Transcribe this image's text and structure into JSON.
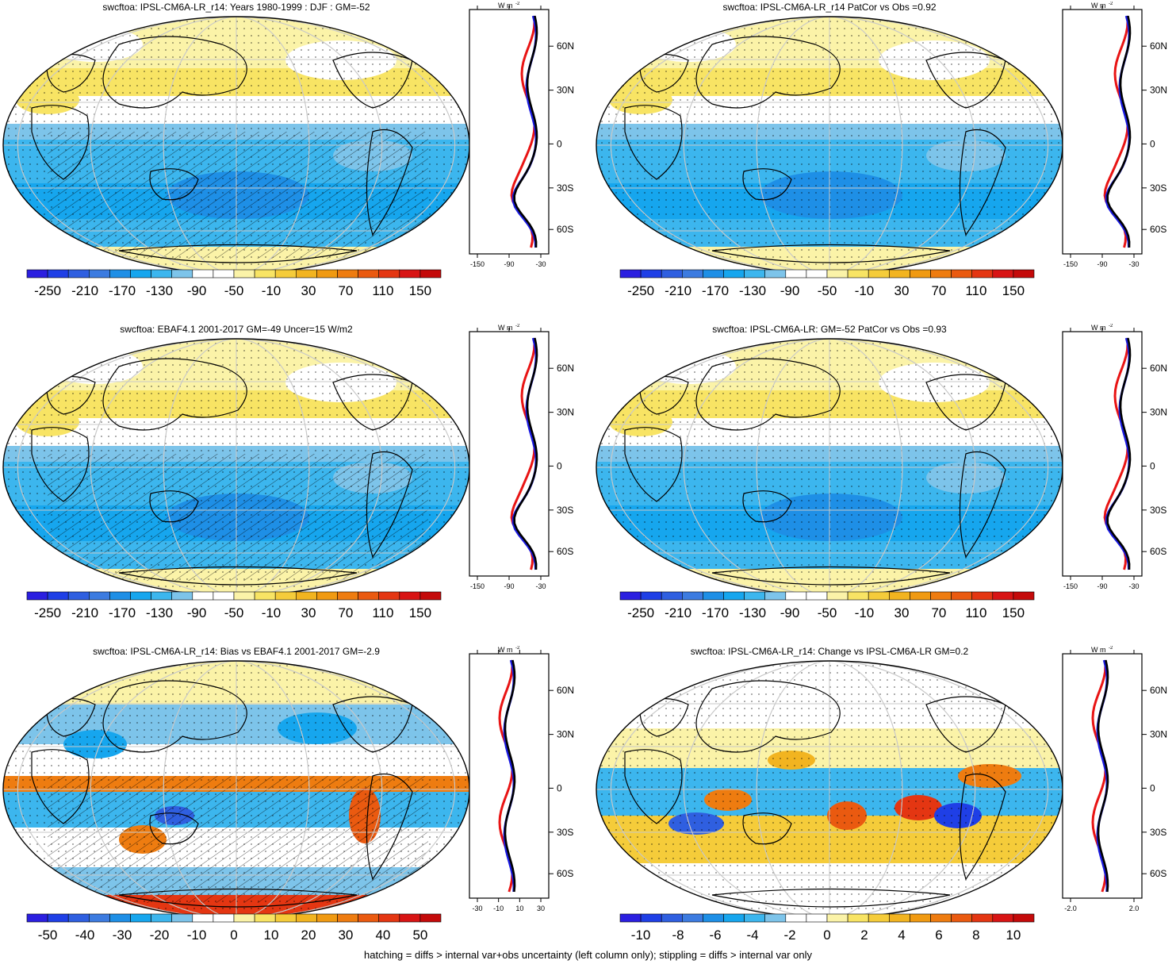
{
  "footer": "hatching = diffs > internal var+obs uncertainty (left column only); stippling = diffs > internal var only",
  "profile_unit": "W m",
  "profile_unit_sup": "-2",
  "lat_labels": [
    "60N",
    "30N",
    "0",
    "30S",
    "60S"
  ],
  "palette_full": [
    "#2b1fe0",
    "#1f3fe6",
    "#2f5fe0",
    "#3c7be0",
    "#1e8fe6",
    "#16a6ee",
    "#3cb6ee",
    "#7dc4ea",
    "#ffffff",
    "#ffffff",
    "#fbf3a8",
    "#f8e464",
    "#f5cc3a",
    "#f2b420",
    "#f09a12",
    "#ee7c10",
    "#ea5a10",
    "#e43612",
    "#d81414",
    "#c40a0a"
  ],
  "panels": [
    {
      "id": "p1",
      "title": "swcftoa: IPSL-CM6A-LR_r14: Years 1980-1999 : DJF : GM=-52",
      "colorbar_labels": [
        "-250",
        "-210",
        "-170",
        "-130",
        "-90",
        "-50",
        "-10",
        "30",
        "70",
        "110",
        "150"
      ],
      "profile_ticks": [
        "-150",
        "-90",
        "-30"
      ],
      "style": "abs",
      "hatch": true
    },
    {
      "id": "p2",
      "title": "swcftoa: IPSL-CM6A-LR_r14 PatCor vs Obs =0.92",
      "colorbar_labels": [
        "-250",
        "-210",
        "-170",
        "-130",
        "-90",
        "-50",
        "-10",
        "30",
        "70",
        "110",
        "150"
      ],
      "profile_ticks": [
        "-150",
        "-90",
        "-30"
      ],
      "style": "abs",
      "hatch": false
    },
    {
      "id": "p3",
      "title": "swcftoa: EBAF4.1 2001-2017 GM=-49 Uncer=15 W/m2",
      "colorbar_labels": [
        "-250",
        "-210",
        "-170",
        "-130",
        "-90",
        "-50",
        "-10",
        "30",
        "70",
        "110",
        "150"
      ],
      "profile_ticks": [
        "-150",
        "-90",
        "-30"
      ],
      "style": "abs",
      "hatch": true
    },
    {
      "id": "p4",
      "title": "swcftoa: IPSL-CM6A-LR: GM=-52 PatCor vs Obs =0.93",
      "colorbar_labels": [
        "-250",
        "-210",
        "-170",
        "-130",
        "-90",
        "-50",
        "-10",
        "30",
        "70",
        "110",
        "150"
      ],
      "profile_ticks": [
        "-150",
        "-90",
        "-30"
      ],
      "style": "abs",
      "hatch": false
    },
    {
      "id": "p5",
      "title": "swcftoa: IPSL-CM6A-LR_r14: Bias vs EBAF4.1 2001-2017 GM=-2.9",
      "colorbar_labels": [
        "-50",
        "-40",
        "-30",
        "-20",
        "-10",
        "0",
        "10",
        "20",
        "30",
        "40",
        "50"
      ],
      "profile_ticks": [
        "-30",
        "-10",
        "10",
        "30"
      ],
      "style": "bias",
      "hatch": true
    },
    {
      "id": "p6",
      "title": "swcftoa: IPSL-CM6A-LR_r14: Change vs IPSL-CM6A-LR GM=0.2",
      "colorbar_labels": [
        "-10",
        "-8",
        "-6",
        "-4",
        "-2",
        "0",
        "2",
        "4",
        "6",
        "8",
        "10"
      ],
      "profile_ticks": [
        "-2.0",
        "2.0"
      ],
      "style": "change",
      "hatch": false
    }
  ]
}
